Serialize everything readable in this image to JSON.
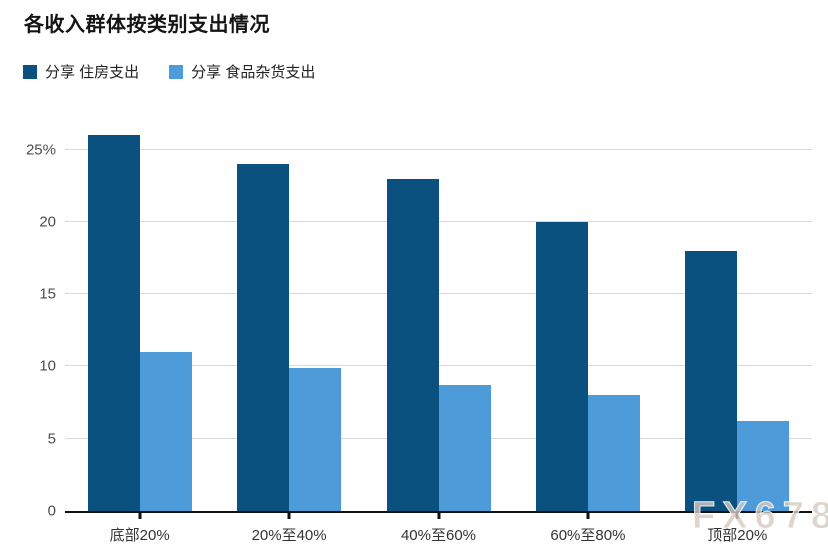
{
  "title": "各收入群体按类别支出情况",
  "legend": [
    {
      "label": "分享 住房支出",
      "color": "#0a5180"
    },
    {
      "label": "分享 食品杂货支出",
      "color": "#4d9bd8"
    }
  ],
  "watermark": "FX678",
  "colors": {
    "grid": "#d9d9d9",
    "axis": "#111111",
    "y_tick_label": "#4d4d4d",
    "x_tick_label": "#333333",
    "title": "#141414",
    "watermark": "#d5cac1"
  },
  "chart_data": {
    "type": "bar",
    "title": "各收入群体按类别支出情况",
    "categories": [
      "底部20%",
      "20%至40%",
      "40%至60%",
      "60%至80%",
      "顶部20%"
    ],
    "series": [
      {
        "name": "分享 住房支出",
        "color": "#0a5180",
        "values": [
          26,
          24,
          23,
          20,
          18
        ]
      },
      {
        "name": "分享 食品杂货支出",
        "color": "#4d9bd8",
        "values": [
          11,
          9.9,
          8.7,
          8,
          6.2
        ]
      }
    ],
    "xlabel": "",
    "ylabel": "",
    "ylim": [
      0,
      26.7
    ],
    "yticks": [
      0,
      5,
      10,
      15,
      20,
      25
    ],
    "ytick_labels": [
      "0",
      "5",
      "10",
      "15",
      "20",
      "25%"
    ],
    "grid": true,
    "legend_position": "top-left"
  }
}
